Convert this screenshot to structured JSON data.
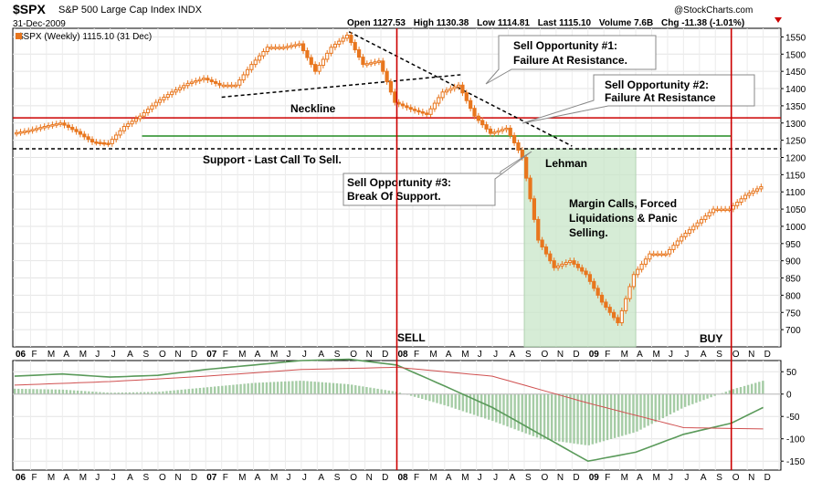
{
  "header": {
    "symbol": "$SPX",
    "name": "S&P 500 Large Cap Index",
    "exchange": "INDX",
    "date": "31-Dec-2009",
    "open_label": "Open",
    "open": "1127.53",
    "high_label": "High",
    "high": "1130.38",
    "low_label": "Low",
    "low": "1114.81",
    "last_label": "Last",
    "last": "1115.10",
    "volume_label": "Volume",
    "volume": "7.6B",
    "chg_label": "Chg",
    "chg": "-11.38",
    "chg_pct": "(-1.01%)",
    "watermark": "@StockCharts.com"
  },
  "colors": {
    "price": "#e8761e",
    "resistance": "#cc0000",
    "support_line": "#228b22",
    "vertical": "#cc0000",
    "shade": "#c8e6c8",
    "macd_hist": "#8fbf8f",
    "macd_line": "#5a9a5a",
    "signal_line": "#d05050"
  },
  "chart_data": [
    {
      "type": "line",
      "title": "$SPX (Weekly) 1115.10 (31 Dec)",
      "series": [
        {
          "name": "$SPX (Weekly)",
          "x": [
            "2006-01",
            "2006-02",
            "2006-03",
            "2006-04",
            "2006-05",
            "2006-06",
            "2006-07",
            "2006-08",
            "2006-09",
            "2006-10",
            "2006-11",
            "2006-12",
            "2007-01",
            "2007-02",
            "2007-03",
            "2007-04",
            "2007-05",
            "2007-06",
            "2007-07",
            "2007-08",
            "2007-09",
            "2007-10",
            "2007-11",
            "2007-12",
            "2008-01",
            "2008-02",
            "2008-03",
            "2008-04",
            "2008-05",
            "2008-06",
            "2008-07",
            "2008-08",
            "2008-09",
            "2008-10",
            "2008-11",
            "2008-12",
            "2009-01",
            "2009-02",
            "2009-03",
            "2009-04",
            "2009-05",
            "2009-06",
            "2009-07",
            "2009-08",
            "2009-09",
            "2009-10",
            "2009-11",
            "2009-12"
          ],
          "values": [
            1270,
            1278,
            1290,
            1300,
            1275,
            1245,
            1240,
            1290,
            1320,
            1360,
            1390,
            1415,
            1430,
            1410,
            1410,
            1470,
            1520,
            1520,
            1530,
            1450,
            1520,
            1555,
            1470,
            1480,
            1360,
            1340,
            1325,
            1390,
            1410,
            1320,
            1270,
            1285,
            1200,
            960,
            880,
            900,
            860,
            780,
            720,
            860,
            920,
            920,
            970,
            1010,
            1050,
            1050,
            1090,
            1115
          ]
        }
      ],
      "categories": [
        "06",
        "F",
        "M",
        "A",
        "M",
        "J",
        "J",
        "A",
        "S",
        "O",
        "N",
        "D",
        "07",
        "F",
        "M",
        "A",
        "M",
        "J",
        "J",
        "A",
        "S",
        "O",
        "N",
        "D",
        "08",
        "F",
        "M",
        "A",
        "M",
        "J",
        "J",
        "A",
        "S",
        "O",
        "N",
        "D",
        "09",
        "F",
        "M",
        "A",
        "M",
        "J",
        "J",
        "A",
        "S",
        "O",
        "N",
        "D"
      ],
      "yticks": [
        700,
        750,
        800,
        850,
        900,
        950,
        1000,
        1050,
        1100,
        1150,
        1200,
        1250,
        1300,
        1350,
        1400,
        1450,
        1500,
        1550
      ],
      "ylim": [
        650,
        1575
      ],
      "grid": true,
      "reference_lines": [
        {
          "kind": "resistance",
          "value": 1315
        },
        {
          "kind": "support-green",
          "value": 1310
        },
        {
          "kind": "support-dashed",
          "value": 1225
        }
      ],
      "trendlines": [
        {
          "name": "Neckline",
          "from": [
            "2007-02",
            1375
          ],
          "to": [
            "2008-05",
            1440
          ]
        },
        {
          "name": "downtrend",
          "from": [
            "2007-10",
            1565
          ],
          "to": [
            "2008-12",
            1233
          ]
        }
      ],
      "events": [
        {
          "label": "SELL",
          "x": "2008-01"
        },
        {
          "label": "BUY",
          "x": "2009-10"
        }
      ],
      "annotations": {
        "neckline": "Neckline",
        "support": "Support - Last Call To Sell.",
        "lehman": "Lehman",
        "sell1_line1": "Sell Opportunity #1:",
        "sell1_line2": "Failure At Resistance.",
        "sell2_line1": "Sell Opportunity #2:",
        "sell2_line2": "Failure At Resistance",
        "sell3_line1": "Sell Opportunity #3:",
        "sell3_line2": "Break Of Support.",
        "margin_line1": "Margin Calls, Forced",
        "margin_line2": "Liquidations & Panic",
        "margin_line3": "Selling.",
        "sell_marker": "SELL",
        "buy_marker": "BUY"
      }
    },
    {
      "type": "line",
      "title": "",
      "series": [
        {
          "name": "",
          "kind": "line",
          "x": [
            "2006-01",
            "2006-04",
            "2006-07",
            "2006-10",
            "2007-01",
            "2007-04",
            "2007-07",
            "2007-10",
            "2008-01",
            "2008-04",
            "2008-07",
            "2008-10",
            "2009-01",
            "2009-04",
            "2009-07",
            "2009-10",
            "2009-12"
          ],
          "values": [
            40,
            45,
            38,
            42,
            55,
            65,
            75,
            78,
            65,
            18,
            -30,
            -90,
            -150,
            -130,
            -90,
            -65,
            -30
          ]
        },
        {
          "name": "",
          "kind": "line",
          "x": [
            "2006-01",
            "2006-07",
            "2007-01",
            "2007-07",
            "2008-01",
            "2008-07",
            "2009-01",
            "2009-07",
            "2009-12"
          ],
          "values": [
            20,
            28,
            40,
            55,
            60,
            40,
            -20,
            -75,
            -78
          ]
        },
        {
          "name": "",
          "kind": "histogram",
          "x": [
            "2006-01",
            "2006-04",
            "2006-07",
            "2006-10",
            "2007-01",
            "2007-04",
            "2007-07",
            "2007-10",
            "2008-01",
            "2008-04",
            "2008-07",
            "2008-10",
            "2009-01",
            "2009-04",
            "2009-07",
            "2009-10",
            "2009-12"
          ],
          "values": [
            12,
            10,
            3,
            5,
            15,
            25,
            30,
            22,
            5,
            -25,
            -60,
            -100,
            -115,
            -85,
            -30,
            10,
            30
          ]
        }
      ],
      "categories": [
        "06",
        "F",
        "M",
        "A",
        "M",
        "J",
        "J",
        "A",
        "S",
        "O",
        "N",
        "D",
        "07",
        "F",
        "M",
        "A",
        "M",
        "J",
        "J",
        "A",
        "S",
        "O",
        "N",
        "D",
        "08",
        "F",
        "M",
        "A",
        "M",
        "J",
        "J",
        "A",
        "S",
        "O",
        "N",
        "D",
        "09",
        "F",
        "M",
        "A",
        "M",
        "J",
        "J",
        "A",
        "S",
        "O",
        "N",
        "D"
      ],
      "yticks": [
        50,
        0,
        -50,
        -100,
        -150
      ],
      "ylim": [
        -170,
        75
      ],
      "grid": true
    }
  ]
}
